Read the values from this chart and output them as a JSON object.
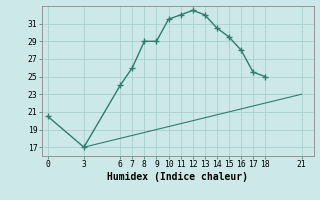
{
  "line1_x": [
    0,
    3,
    6,
    7,
    8,
    9,
    10,
    11,
    12,
    13,
    14,
    15,
    16,
    17,
    18
  ],
  "line1_y": [
    20.5,
    17.0,
    24.0,
    26.0,
    29.0,
    29.0,
    31.5,
    32.0,
    32.5,
    32.0,
    30.5,
    29.5,
    28.0,
    25.5,
    25.0
  ],
  "line2_x": [
    3,
    21
  ],
  "line2_y": [
    17.0,
    23.0
  ],
  "line_color": "#2e7d6e",
  "bg_color": "#cce8e8",
  "grid_color": "#aacfcf",
  "xlabel": "Humidex (Indice chaleur)",
  "xticks": [
    0,
    3,
    6,
    7,
    8,
    9,
    10,
    11,
    12,
    13,
    14,
    15,
    16,
    17,
    18,
    21
  ],
  "yticks": [
    17,
    19,
    21,
    23,
    25,
    27,
    29,
    31
  ],
  "xlim": [
    -0.5,
    22
  ],
  "ylim": [
    16.0,
    33.0
  ],
  "tick_fontsize": 5.8,
  "xlabel_fontsize": 7.0
}
